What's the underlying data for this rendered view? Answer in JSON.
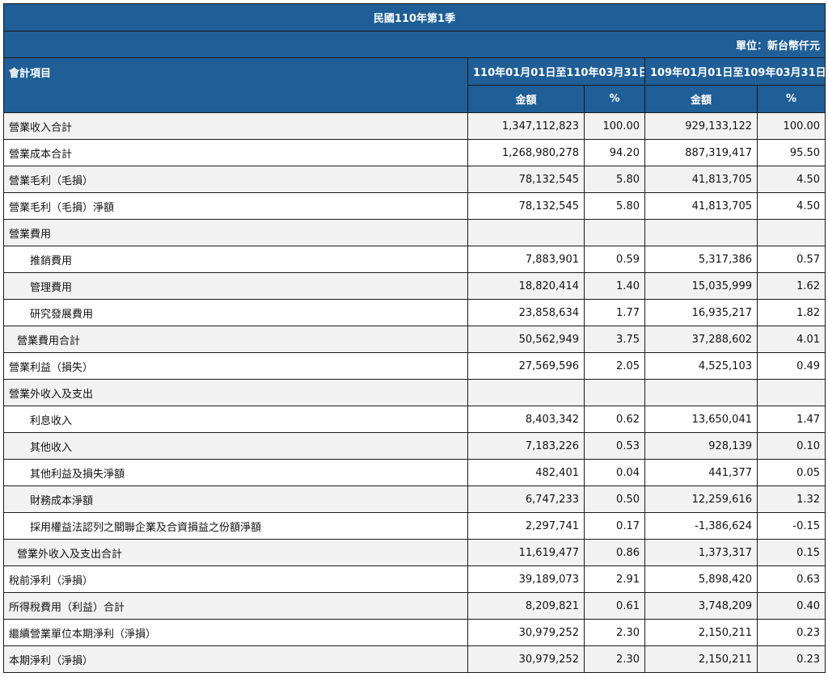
{
  "title": "民國110年第1季",
  "unit": "單位：新台幣仟元",
  "header": {
    "item": "會計項目",
    "period1": "110年01月01日至110年03月31日",
    "period2": "109年01月01日至109年03月31日",
    "amount": "金額",
    "pct": "%"
  },
  "rows": [
    {
      "label": "營業收入合計",
      "a1": "1,347,112,823",
      "p1": "100.00",
      "a2": "929,133,122",
      "p2": "100.00",
      "indent": 0
    },
    {
      "label": "營業成本合計",
      "a1": "1,268,980,278",
      "p1": "94.20",
      "a2": "887,319,417",
      "p2": "95.50",
      "indent": 0
    },
    {
      "label": "營業毛利（毛損）",
      "a1": "78,132,545",
      "p1": "5.80",
      "a2": "41,813,705",
      "p2": "4.50",
      "indent": 0
    },
    {
      "label": "營業毛利（毛損）淨額",
      "a1": "78,132,545",
      "p1": "5.80",
      "a2": "41,813,705",
      "p2": "4.50",
      "indent": 0
    },
    {
      "label": "營業費用",
      "a1": "",
      "p1": "",
      "a2": "",
      "p2": "",
      "indent": 0
    },
    {
      "label": "推銷費用",
      "a1": "7,883,901",
      "p1": "0.59",
      "a2": "5,317,386",
      "p2": "0.57",
      "indent": 2
    },
    {
      "label": "管理費用",
      "a1": "18,820,414",
      "p1": "1.40",
      "a2": "15,035,999",
      "p2": "1.62",
      "indent": 2
    },
    {
      "label": "研究發展費用",
      "a1": "23,858,634",
      "p1": "1.77",
      "a2": "16,935,217",
      "p2": "1.82",
      "indent": 2
    },
    {
      "label": "營業費用合計",
      "a1": "50,562,949",
      "p1": "3.75",
      "a2": "37,288,602",
      "p2": "4.01",
      "indent": 1
    },
    {
      "label": "營業利益（損失）",
      "a1": "27,569,596",
      "p1": "2.05",
      "a2": "4,525,103",
      "p2": "0.49",
      "indent": 0
    },
    {
      "label": "營業外收入及支出",
      "a1": "",
      "p1": "",
      "a2": "",
      "p2": "",
      "indent": 0
    },
    {
      "label": "利息收入",
      "a1": "8,403,342",
      "p1": "0.62",
      "a2": "13,650,041",
      "p2": "1.47",
      "indent": 2
    },
    {
      "label": "其他收入",
      "a1": "7,183,226",
      "p1": "0.53",
      "a2": "928,139",
      "p2": "0.10",
      "indent": 2
    },
    {
      "label": "其他利益及損失淨額",
      "a1": "482,401",
      "p1": "0.04",
      "a2": "441,377",
      "p2": "0.05",
      "indent": 2
    },
    {
      "label": "財務成本淨額",
      "a1": "6,747,233",
      "p1": "0.50",
      "a2": "12,259,616",
      "p2": "1.32",
      "indent": 2
    },
    {
      "label": "採用權益法認列之關聯企業及合資損益之份額淨額",
      "a1": "2,297,741",
      "p1": "0.17",
      "a2": "-1,386,624",
      "p2": "-0.15",
      "indent": 2
    },
    {
      "label": "營業外收入及支出合計",
      "a1": "11,619,477",
      "p1": "0.86",
      "a2": "1,373,317",
      "p2": "0.15",
      "indent": 1
    },
    {
      "label": "稅前淨利（淨損）",
      "a1": "39,189,073",
      "p1": "2.91",
      "a2": "5,898,420",
      "p2": "0.63",
      "indent": 0
    },
    {
      "label": "所得稅費用（利益）合計",
      "a1": "8,209,821",
      "p1": "0.61",
      "a2": "3,748,209",
      "p2": "0.40",
      "indent": 0
    },
    {
      "label": "繼續營業單位本期淨利（淨損）",
      "a1": "30,979,252",
      "p1": "2.30",
      "a2": "2,150,211",
      "p2": "0.23",
      "indent": 0
    },
    {
      "label": "本期淨利（淨損）",
      "a1": "30,979,252",
      "p1": "2.30",
      "a2": "2,150,211",
      "p2": "0.23",
      "indent": 0
    }
  ],
  "colors": {
    "header_bg": "#1f5e96",
    "header_text": "#ffffff",
    "row_alt": "#f2f2f2",
    "row_base": "#ffffff"
  }
}
